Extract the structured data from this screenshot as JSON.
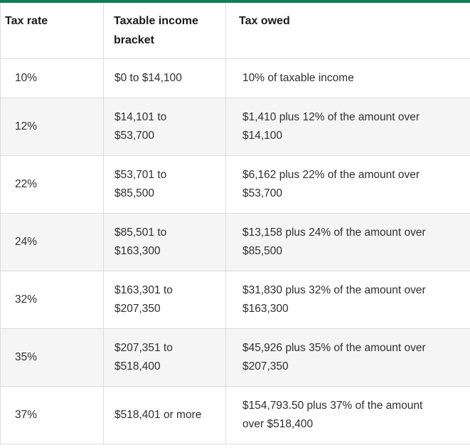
{
  "colors": {
    "accent_top_border": "#0d8056",
    "row_alt_bg": "#f5f5f5",
    "divider": "#dcdcdc",
    "outer_border": "#c9c9c9",
    "text": "#2e2e2e",
    "header_text": "#1a1a1a"
  },
  "chart_data": {
    "type": "table",
    "columns": [
      "Tax rate",
      "Taxable income bracket",
      "Tax owed"
    ],
    "rows": [
      [
        "10%",
        "$0 to $14,100",
        "10% of taxable income"
      ],
      [
        "12%",
        "$14,101 to $53,700",
        "$1,410 plus 12% of the amount over $14,100"
      ],
      [
        "22%",
        "$53,701 to $85,500",
        "$6,162 plus 22% of the amount over $53,700"
      ],
      [
        "24%",
        "$85,501 to $163,300",
        "$13,158 plus 24% of the amount over $85,500"
      ],
      [
        "32%",
        "$163,301 to $207,350",
        "$31,830 plus 32% of the amount over $163,300"
      ],
      [
        "35%",
        "$207,351 to $518,400",
        "$45,926 plus 35% of the amount over $207,350"
      ],
      [
        "37%",
        "$518,401 or more",
        "$154,793.50 plus 37% of the amount over $518,400"
      ]
    ],
    "layout": {
      "header_row": true,
      "alternating_rows": true,
      "accent_position": "top-border"
    }
  }
}
